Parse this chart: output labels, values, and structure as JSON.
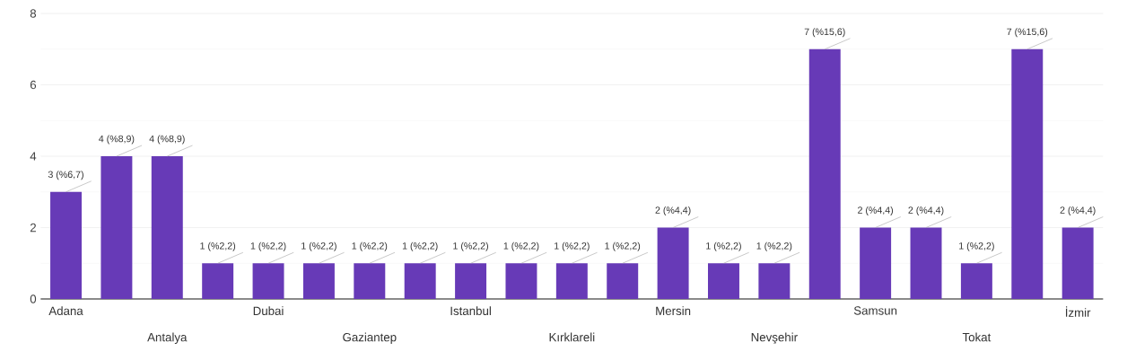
{
  "chart_data": {
    "type": "bar",
    "categories": [
      "Adana",
      null,
      "Antalya",
      null,
      "Dubai",
      null,
      "Gaziantep",
      null,
      "Istanbul",
      null,
      "Kırklareli",
      null,
      "Mersin",
      null,
      "Nevşehir",
      null,
      "Samsun",
      null,
      "Tokat",
      null,
      "İzmir"
    ],
    "values": [
      3,
      4,
      4,
      1,
      1,
      1,
      1,
      1,
      1,
      1,
      1,
      1,
      2,
      1,
      1,
      7,
      2,
      2,
      1,
      7,
      2
    ],
    "value_labels": [
      "3 (%6,7)",
      "4 (%8,9)",
      "4 (%8,9)",
      "1 (%2,2)",
      "1 (%2,2)",
      "1 (%2,2)",
      "1 (%2,2)",
      "1 (%2,2)",
      "1 (%2,2)",
      "1 (%2,2)",
      "1 (%2,2)",
      "1 (%2,2)",
      "2 (%4,4)",
      "1 (%2,2)",
      "1 (%2,2)",
      "7 (%15,6)",
      "2 (%4,4)",
      "2 (%4,4)",
      "1 (%2,2)",
      "7 (%15,6)",
      "2 (%4,4)"
    ],
    "color": "#673ab7",
    "ylim": [
      0,
      8
    ],
    "yticks": [
      0,
      2,
      4,
      6,
      8
    ],
    "grid": "y"
  }
}
